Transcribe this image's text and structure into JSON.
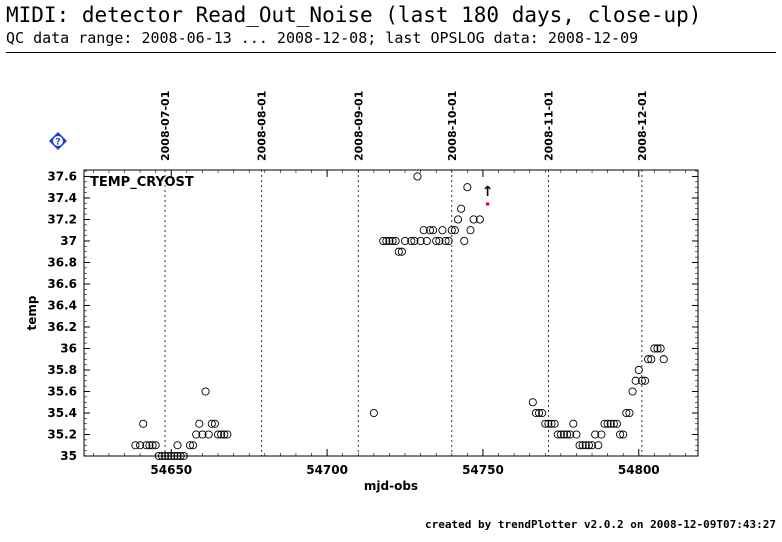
{
  "header": {
    "title": "MIDI: detector Read_Out_Noise (last 180 days, close-up)",
    "subtitle": "QC data range: 2008-06-13 ... 2008-12-08; last OPSLOG data: 2008-12-09"
  },
  "help_icon": {
    "label": "?",
    "color": "#1a3cd8"
  },
  "footer": {
    "text": "created by trendPlotter v2.0.2 on 2008-12-09T07:43:27"
  },
  "chart_data": {
    "type": "scatter",
    "panel_label": "TEMP_CRYOST",
    "xlabel": "mjd-obs",
    "ylabel": "temp",
    "xlim": [
      54622,
      54819
    ],
    "ylim": [
      35.0,
      37.66
    ],
    "x_ticks": [
      54650,
      54700,
      54750,
      54800
    ],
    "y_ticks": [
      35,
      35.2,
      35.4,
      35.6,
      35.8,
      36,
      36.2,
      36.4,
      36.6,
      36.8,
      37,
      37.2,
      37.4,
      37.6
    ],
    "date_markers": [
      {
        "label": "2008-07-01",
        "mjd": 54648
      },
      {
        "label": "2008-08-01",
        "mjd": 54679
      },
      {
        "label": "2008-09-01",
        "mjd": 54710
      },
      {
        "label": "2008-10-01",
        "mjd": 54740
      },
      {
        "label": "2008-11-01",
        "mjd": 54771
      },
      {
        "label": "2008-12-01",
        "mjd": 54801
      }
    ],
    "points": [
      [
        54638.5,
        35.1
      ],
      [
        54640,
        35.1
      ],
      [
        54641,
        35.3
      ],
      [
        54642,
        35.1
      ],
      [
        54643,
        35.1
      ],
      [
        54644,
        35.1
      ],
      [
        54645,
        35.1
      ],
      [
        54646,
        35.0
      ],
      [
        54647,
        35.0
      ],
      [
        54648,
        35.0
      ],
      [
        54649,
        35.0
      ],
      [
        54650,
        35.0
      ],
      [
        54651,
        35.0
      ],
      [
        54652,
        35.0
      ],
      [
        54653,
        35.0
      ],
      [
        54654,
        35.0
      ],
      [
        54652,
        35.1
      ],
      [
        54656,
        35.1
      ],
      [
        54657,
        35.1
      ],
      [
        54658,
        35.2
      ],
      [
        54659,
        35.3
      ],
      [
        54660,
        35.2
      ],
      [
        54661,
        35.6
      ],
      [
        54662,
        35.2
      ],
      [
        54663,
        35.3
      ],
      [
        54664,
        35.3
      ],
      [
        54665,
        35.2
      ],
      [
        54666,
        35.2
      ],
      [
        54667,
        35.2
      ],
      [
        54668,
        35.2
      ],
      [
        54715,
        35.4
      ],
      [
        54718,
        37.0
      ],
      [
        54719,
        37.0
      ],
      [
        54720,
        37.0
      ],
      [
        54721,
        37.0
      ],
      [
        54722,
        37.0
      ],
      [
        54723,
        36.9
      ],
      [
        54724,
        36.9
      ],
      [
        54725,
        37.0
      ],
      [
        54727,
        37.0
      ],
      [
        54728,
        37.0
      ],
      [
        54729,
        37.6
      ],
      [
        54730,
        37.0
      ],
      [
        54731,
        37.1
      ],
      [
        54732,
        37.0
      ],
      [
        54733,
        37.1
      ],
      [
        54734,
        37.1
      ],
      [
        54735,
        37.0
      ],
      [
        54736,
        37.0
      ],
      [
        54737,
        37.1
      ],
      [
        54738,
        37.0
      ],
      [
        54739,
        37.0
      ],
      [
        54740,
        37.1
      ],
      [
        54741,
        37.1
      ],
      [
        54742,
        37.2
      ],
      [
        54743,
        37.3
      ],
      [
        54744,
        37.0
      ],
      [
        54745,
        37.5
      ],
      [
        54746,
        37.1
      ],
      [
        54747,
        37.2
      ],
      [
        54749,
        37.2
      ],
      [
        54766,
        35.5
      ],
      [
        54767,
        35.4
      ],
      [
        54768,
        35.4
      ],
      [
        54769,
        35.4
      ],
      [
        54770,
        35.3
      ],
      [
        54771,
        35.3
      ],
      [
        54772,
        35.3
      ],
      [
        54773,
        35.3
      ],
      [
        54774,
        35.2
      ],
      [
        54775,
        35.2
      ],
      [
        54776,
        35.2
      ],
      [
        54777,
        35.2
      ],
      [
        54778,
        35.2
      ],
      [
        54779,
        35.3
      ],
      [
        54780,
        35.2
      ],
      [
        54781,
        35.1
      ],
      [
        54782,
        35.1
      ],
      [
        54783,
        35.1
      ],
      [
        54784,
        35.1
      ],
      [
        54785,
        35.1
      ],
      [
        54786,
        35.2
      ],
      [
        54787,
        35.1
      ],
      [
        54788,
        35.2
      ],
      [
        54789,
        35.3
      ],
      [
        54790,
        35.3
      ],
      [
        54791,
        35.3
      ],
      [
        54792,
        35.3
      ],
      [
        54793,
        35.3
      ],
      [
        54794,
        35.2
      ],
      [
        54795,
        35.2
      ],
      [
        54796,
        35.4
      ],
      [
        54797,
        35.4
      ],
      [
        54798,
        35.6
      ],
      [
        54799,
        35.7
      ],
      [
        54800,
        35.8
      ],
      [
        54801,
        35.7
      ],
      [
        54802,
        35.7
      ],
      [
        54803,
        35.9
      ],
      [
        54804,
        35.9
      ],
      [
        54805,
        36.0
      ],
      [
        54806,
        36.0
      ],
      [
        54807,
        36.0
      ],
      [
        54808,
        35.9
      ]
    ],
    "out_of_range": {
      "mjd": 54751.5,
      "label": "↑",
      "color": "#e8001c"
    },
    "colors": {
      "points": "#000000",
      "marker": "#e8001c",
      "axes": "#000000",
      "grid": "#000000"
    }
  }
}
